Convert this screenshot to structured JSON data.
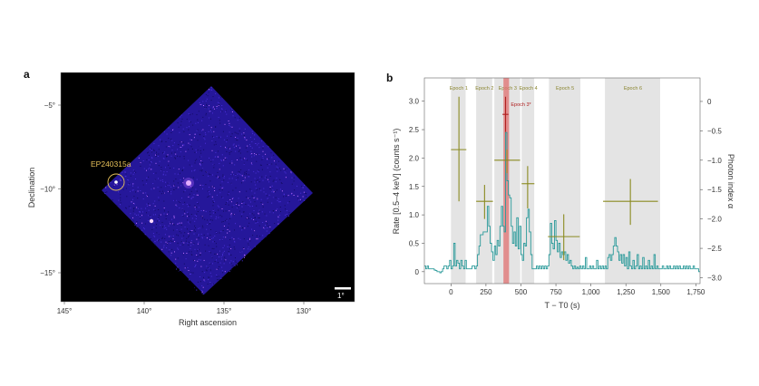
{
  "panels": {
    "a": {
      "label": "a",
      "xlabel": "Right ascension",
      "ylabel": "Declination",
      "xticks": [
        {
          "v": 145,
          "t": "145°"
        },
        {
          "v": 140,
          "t": "140°"
        },
        {
          "v": 135,
          "t": "135°"
        },
        {
          "v": 130,
          "t": "130°"
        }
      ],
      "yticks": [
        {
          "v": -5,
          "t": "−5°"
        },
        {
          "v": -10,
          "t": "−10°"
        },
        {
          "v": -15,
          "t": "−15°"
        }
      ],
      "source_label": "EP240315a",
      "source_color": "#e8c25a",
      "scale_bar": "1°",
      "image_colors": {
        "background": "#000000",
        "field": "#2a1a9c",
        "hot": "#ffd0ff"
      }
    }
  },
  "chart_data": {
    "type": "line",
    "panel_label": "b",
    "xlabel": "T − T0 (s)",
    "ylabel": "Rate [0.5–4 keV] (counts s⁻¹)",
    "y2label": "Photon index α",
    "xlim": [
      -190,
      1780
    ],
    "ylim": [
      -0.21,
      3.41
    ],
    "y2lim": [
      -3.1,
      0.4
    ],
    "xticks": [
      {
        "v": 0,
        "t": "0"
      },
      {
        "v": 250,
        "t": "250"
      },
      {
        "v": 500,
        "t": "500"
      },
      {
        "v": 750,
        "t": "750"
      },
      {
        "v": 1000,
        "t": "1,000"
      },
      {
        "v": 1250,
        "t": "1,250"
      },
      {
        "v": 1500,
        "t": "1,500"
      },
      {
        "v": 1750,
        "t": "1,750"
      }
    ],
    "yticks": [
      {
        "v": 0,
        "t": "0"
      },
      {
        "v": 0.5,
        "t": "0.5"
      },
      {
        "v": 1,
        "t": "1.0"
      },
      {
        "v": 1.5,
        "t": "1.5"
      },
      {
        "v": 2,
        "t": "2.0"
      },
      {
        "v": 2.5,
        "t": "2.5"
      },
      {
        "v": 3,
        "t": "3.0"
      }
    ],
    "y2ticks": [
      {
        "v": 0,
        "t": "0"
      },
      {
        "v": -0.5,
        "t": "−0.5"
      },
      {
        "v": -1,
        "t": "−1.0"
      },
      {
        "v": -1.5,
        "t": "−1.5"
      },
      {
        "v": -2,
        "t": "−2.0"
      },
      {
        "v": -2.5,
        "t": "−2.5"
      },
      {
        "v": -3,
        "t": "−3.0"
      }
    ],
    "epochs": [
      {
        "name": "Epoch 1",
        "start": 0,
        "end": 110
      },
      {
        "name": "Epoch 2",
        "start": 180,
        "end": 300
      },
      {
        "name": "Epoch 3",
        "start": 310,
        "end": 500
      },
      {
        "name": "Epoch 4",
        "start": 505,
        "end": 600
      },
      {
        "name": "Epoch 5",
        "start": 700,
        "end": 930
      },
      {
        "name": "Epoch 6",
        "start": 1100,
        "end": 1500
      }
    ],
    "highlight": {
      "name": "Epoch 3*",
      "start": 375,
      "end": 415,
      "color": "#e07070"
    },
    "colors": {
      "lightcurve": "#2a9a9a",
      "index": "#8a8a20",
      "index_star": "#b02020",
      "band": "#e4e4e4"
    },
    "photon_index": [
      {
        "epoch": "Epoch 1",
        "t": 57,
        "t_lo": 0,
        "t_hi": 110,
        "alpha": -0.82,
        "lo": -1.7,
        "hi": 0.08
      },
      {
        "epoch": "Epoch 2",
        "t": 240,
        "t_lo": 180,
        "t_hi": 300,
        "alpha": -1.7,
        "lo": -2.0,
        "hi": -1.42
      },
      {
        "epoch": "Epoch 3",
        "t": 400,
        "t_lo": 310,
        "t_hi": 494,
        "alpha": -1.0,
        "lo": -1.22,
        "hi": -0.82
      },
      {
        "epoch": "Epoch 4",
        "t": 548,
        "t_lo": 505,
        "t_hi": 596,
        "alpha": -1.4,
        "lo": -1.82,
        "hi": -1.1
      },
      {
        "epoch": "Epoch 5",
        "t": 806,
        "t_lo": 693,
        "t_hi": 920,
        "alpha": -2.3,
        "lo": -2.7,
        "hi": -1.92
      },
      {
        "epoch": "Epoch 6",
        "t": 1282,
        "t_lo": 1087,
        "t_hi": 1479,
        "alpha": -1.7,
        "lo": -2.1,
        "hi": -1.32
      },
      {
        "epoch": "Epoch 3*",
        "t": 390,
        "t_lo": 368,
        "t_hi": 411,
        "alpha": -0.22,
        "lo": -0.52,
        "hi": 0.08
      }
    ],
    "lightcurve": {
      "bin_start": -190,
      "bin_width": 10,
      "rate": [
        0.1,
        0.05,
        0.1,
        0.05,
        0.05,
        0.05,
        0.05,
        0.03,
        0.02,
        0.0,
        0.0,
        -0.02,
        0.0,
        0.05,
        0.1,
        0.1,
        0.05,
        0.1,
        0.2,
        0.05,
        0.1,
        0.5,
        0.1,
        0.2,
        0.15,
        0.05,
        0.2,
        0.1,
        0.05,
        0.2,
        0.05,
        0.05,
        0.05,
        0.05,
        0.1,
        0.1,
        0.05,
        0.1,
        0.3,
        0.45,
        0.65,
        0.65,
        0.7,
        0.7,
        0.7,
        1.15,
        0.8,
        0.5,
        0.35,
        0.2,
        0.45,
        0.3,
        0.55,
        0.45,
        0.8,
        1.15,
        0.8,
        0.7,
        2.45,
        1.6,
        1.35,
        1.3,
        0.8,
        0.5,
        0.7,
        0.45,
        0.95,
        0.4,
        0.8,
        0.3,
        0.2,
        0.5,
        0.45,
        0.95,
        1.1,
        0.7,
        0.3,
        0.05,
        0.05,
        0.05,
        0.1,
        0.05,
        0.1,
        0.05,
        0.1,
        0.05,
        0.1,
        0.05,
        0.1,
        0.3,
        0.85,
        0.5,
        0.4,
        0.9,
        0.55,
        0.35,
        0.5,
        0.25,
        0.35,
        0.3,
        0.35,
        0.2,
        0.3,
        0.15,
        0.2,
        0.1,
        0.05,
        0.1,
        0.05,
        0.08,
        0.05,
        0.1,
        0.05,
        0.1,
        0.05,
        0.25,
        0.05,
        0.05,
        0.1,
        0.05,
        0.1,
        0.05,
        0.05,
        0.2,
        0.05,
        0.1,
        0.05,
        0.1,
        0.05,
        0.1,
        0.05,
        0.25,
        0.3,
        0.2,
        0.3,
        0.45,
        0.6,
        0.45,
        0.35,
        0.2,
        0.3,
        0.15,
        0.3,
        0.1,
        0.25,
        0.05,
        0.35,
        0.1,
        0.05,
        0.2,
        0.05,
        0.1,
        0.3,
        0.05,
        0.1,
        0.05,
        0.25,
        0.05,
        0.1,
        0.05,
        0.2,
        0.05,
        0.1,
        0.05,
        0.3,
        0.05,
        0.1,
        0.05,
        0.05,
        0.05,
        0.1,
        0.05,
        0.05,
        0.1,
        0.05,
        0.1,
        0.05,
        0.05,
        0.1,
        0.05,
        0.1,
        0.05,
        0.1,
        0.05,
        0.05,
        0.1,
        0.05,
        0.1,
        0.05,
        0.1,
        0.05,
        0.05,
        0.1,
        0.05,
        0.05,
        0.05,
        0.0
      ]
    }
  }
}
